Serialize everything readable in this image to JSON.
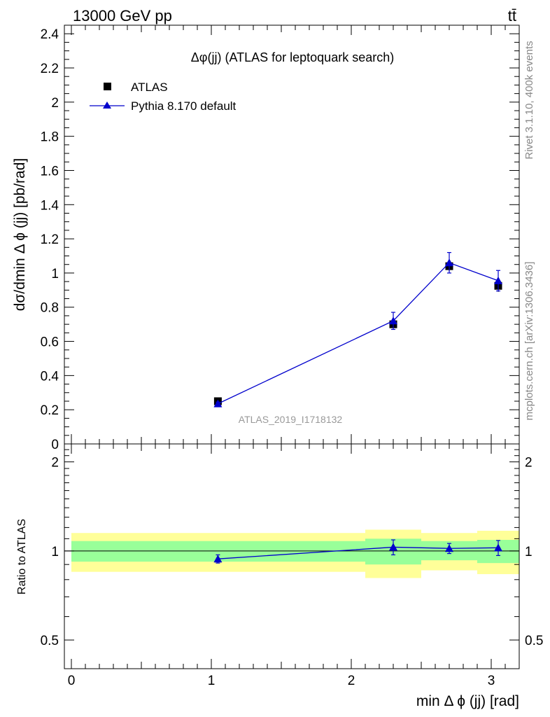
{
  "header": {
    "energy_label": "13000 GeV pp",
    "process_label": "tt̄"
  },
  "side_labels": {
    "rivet": "Rivet 3.1.10,  400k events",
    "mcplots": "mcplots.cern.ch [arXiv:1306.3436]"
  },
  "chart_data": [
    {
      "type": "scatter",
      "panel": "main",
      "title": "Δφ(jj) (ATLAS for leptoquark search)",
      "ylabel": "dσ/dmin Δ ϕ (jj) [pb/rad]",
      "xlabel": "",
      "watermark": "ATLAS_2019_I1718132",
      "xlim": [
        -0.05,
        3.2
      ],
      "ylim": [
        0,
        2.45
      ],
      "yticks": [
        0,
        0.2,
        0.4,
        0.6,
        0.8,
        1,
        1.2,
        1.4,
        1.6,
        1.8,
        2,
        2.2,
        2.4
      ],
      "ytick_labels": [
        "0",
        "0.2",
        "0.4",
        "0.6",
        "0.8",
        "1",
        "1.2",
        "1.4",
        "1.6",
        "1.8",
        "2",
        "2.2",
        "2.4"
      ],
      "legend_position": "top-left",
      "series": [
        {
          "name": "ATLAS",
          "marker": "square",
          "color": "#000000",
          "x": [
            1.047,
            2.3,
            2.7,
            3.05
          ],
          "y": [
            0.25,
            0.7,
            1.04,
            0.925
          ],
          "yerr": [
            0.01,
            0.02,
            0.03,
            0.035
          ]
        },
        {
          "name": "Pythia 8.170 default",
          "marker": "triangle",
          "color": "#0000cc",
          "x": [
            1.047,
            2.3,
            2.7,
            3.05
          ],
          "y": [
            0.235,
            0.72,
            1.06,
            0.955
          ],
          "yerr": [
            0.01,
            0.05,
            0.06,
            0.06
          ]
        }
      ]
    },
    {
      "type": "line",
      "panel": "ratio",
      "ylabel": "Ratio to ATLAS",
      "xlabel": "min Δ ϕ (jj) [rad]",
      "xlim": [
        -0.05,
        3.2
      ],
      "ylim": [
        0.4,
        2.3
      ],
      "log_y": true,
      "xticks": [
        0,
        1,
        2,
        3
      ],
      "xtick_labels": [
        "0",
        "1",
        "2",
        "3"
      ],
      "yticks": [
        0.5,
        1,
        2
      ],
      "ytick_labels": [
        "0.5",
        "1",
        "2"
      ],
      "bands": [
        {
          "x0": 0.0,
          "x1": 2.1,
          "yellow": [
            0.85,
            1.15
          ],
          "green": [
            0.92,
            1.08
          ]
        },
        {
          "x0": 2.1,
          "x1": 2.5,
          "yellow": [
            0.81,
            1.18
          ],
          "green": [
            0.9,
            1.1
          ]
        },
        {
          "x0": 2.5,
          "x1": 2.9,
          "yellow": [
            0.86,
            1.15
          ],
          "green": [
            0.93,
            1.08
          ]
        },
        {
          "x0": 2.9,
          "x1": 3.2,
          "yellow": [
            0.835,
            1.17
          ],
          "green": [
            0.91,
            1.09
          ]
        }
      ],
      "band_colors": {
        "yellow": "#ffff99",
        "green": "#99ff99"
      },
      "series": [
        {
          "name": "Pythia 8.170 default",
          "color": "#0000cc",
          "x": [
            1.047,
            2.3,
            2.7,
            3.05
          ],
          "y": [
            0.94,
            1.03,
            1.02,
            1.025
          ],
          "yerr": [
            0.03,
            0.06,
            0.04,
            0.06
          ]
        }
      ]
    }
  ]
}
